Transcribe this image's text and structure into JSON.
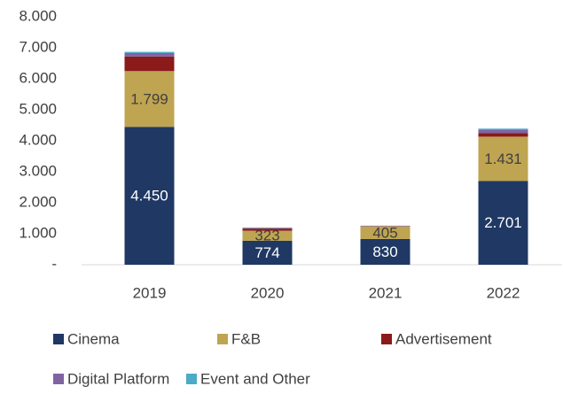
{
  "chart_data": {
    "type": "stacked_bar",
    "categories": [
      "2019",
      "2020",
      "2021",
      "2022"
    ],
    "series": [
      {
        "name": "Cinema",
        "color": "#1f3864",
        "values": [
          4450,
          774,
          830,
          2701
        ],
        "value_labels": [
          "4.450",
          "774",
          "830",
          "2.701"
        ]
      },
      {
        "name": "F&B",
        "color": "#bfa451",
        "values": [
          1799,
          323,
          405,
          1431
        ],
        "value_labels": [
          "1.799",
          "323",
          "405",
          "1.431"
        ]
      },
      {
        "name": "Advertisement",
        "color": "#8b1a1a",
        "values": [
          470,
          70,
          10,
          110
        ]
      },
      {
        "name": "Digital Platform",
        "color": "#8064a2",
        "values": [
          110,
          20,
          10,
          120
        ]
      },
      {
        "name": "Event and Other",
        "color": "#4bacc6",
        "values": [
          40,
          10,
          5,
          30
        ]
      }
    ],
    "ylim": [
      0,
      8000
    ],
    "yticks": [
      {
        "value": 0,
        "label": "-"
      },
      {
        "value": 1000,
        "label": "1.000"
      },
      {
        "value": 2000,
        "label": "2.000"
      },
      {
        "value": 3000,
        "label": "3.000"
      },
      {
        "value": 4000,
        "label": "4.000"
      },
      {
        "value": 5000,
        "label": "5.000"
      },
      {
        "value": 6000,
        "label": "6.000"
      },
      {
        "value": 7000,
        "label": "7.000"
      },
      {
        "value": 8000,
        "label": "8.000"
      }
    ],
    "grid": false
  }
}
